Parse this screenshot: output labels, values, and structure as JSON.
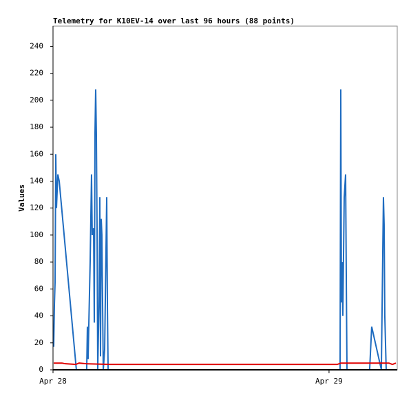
{
  "chart_data": {
    "type": "line",
    "title": "Telemetry for K10EV-14 over last 96 hours (88 points)",
    "y_label": "Values",
    "xlim": [
      0,
      29.93
    ],
    "xticks": [
      {
        "value": 0,
        "label": "Apr 28"
      },
      {
        "value": 24,
        "label": "Apr 29"
      }
    ],
    "ylim": [
      0,
      255
    ],
    "yticks": [
      0,
      20,
      40,
      60,
      80,
      100,
      120,
      140,
      160,
      180,
      200,
      220,
      240
    ],
    "series": [
      {
        "color": "#1f6cc0",
        "x": [
          0.06,
          0.12,
          0.18,
          0.24,
          0.3,
          0.42,
          0.54,
          2.03,
          2.93,
          2.99,
          3.05,
          3.23,
          3.35,
          3.41,
          3.53,
          3.59,
          3.65,
          3.71,
          3.77,
          3.83,
          3.89,
          4.01,
          4.07,
          4.13,
          4.19,
          4.25,
          4.37,
          4.49,
          4.67,
          4.73,
          4.79,
          24.96,
          25.02,
          25.08,
          25.14,
          25.2,
          25.32,
          25.44,
          25.5,
          25.56,
          27.53,
          27.71,
          28.55,
          28.73,
          28.79,
          28.85,
          28.97
        ],
        "values": [
          17,
          48,
          65,
          160,
          120,
          145,
          140,
          0,
          0,
          32,
          8,
          80,
          145,
          100,
          105,
          35,
          175,
          208,
          175,
          105,
          0,
          55,
          128,
          10,
          112,
          100,
          0,
          15,
          128,
          48,
          0,
          0,
          208,
          50,
          80,
          40,
          128,
          145,
          70,
          0,
          0,
          32,
          0,
          128,
          108,
          40,
          0
        ]
      },
      {
        "color": "#e00000",
        "x": [
          0.06,
          0.78,
          1.08,
          1.98,
          2.27,
          2.87,
          4.97,
          24.72,
          25.02,
          29.21,
          29.51,
          29.81
        ],
        "values": [
          5,
          5,
          4.5,
          4,
          5,
          4.5,
          4,
          4,
          5,
          5,
          4,
          5
        ]
      }
    ]
  }
}
